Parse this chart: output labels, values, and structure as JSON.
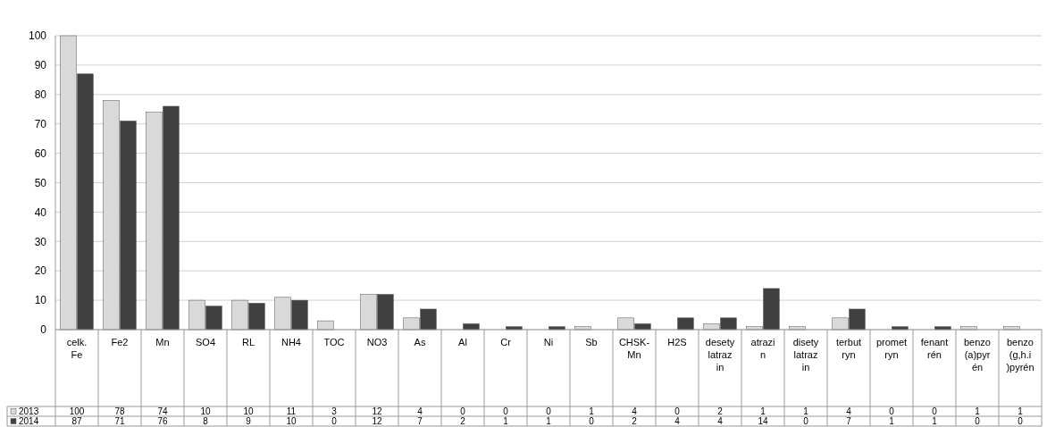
{
  "chart_data": {
    "type": "bar",
    "categories": [
      "celk. Fe",
      "Fe2",
      "Mn",
      "SO4",
      "RL",
      "NH4",
      "TOC",
      "NO3",
      "As",
      "Al",
      "Cr",
      "Ni",
      "Sb",
      "CHSK-Mn",
      "H2S",
      "desetylatrazin",
      "atrazin",
      "disetylatrazin",
      "terbutryn",
      "prometryn",
      "fenantrén",
      "benzo(a)pyrén",
      "benzo(g,h.i)pyrén"
    ],
    "series": [
      {
        "name": "2013",
        "color": "#d9d9d9",
        "values": [
          100,
          78,
          74,
          10,
          10,
          11,
          3,
          12,
          4,
          0,
          0,
          0,
          1,
          4,
          0,
          2,
          1,
          1,
          4,
          0,
          0,
          1,
          1
        ]
      },
      {
        "name": "2014",
        "color": "#404040",
        "values": [
          87,
          71,
          76,
          8,
          9,
          10,
          0,
          12,
          7,
          2,
          1,
          1,
          0,
          2,
          4,
          4,
          14,
          0,
          7,
          1,
          1,
          0,
          0
        ]
      }
    ],
    "ylim": [
      0,
      100
    ],
    "yticks": [
      0,
      10,
      20,
      30,
      40,
      50,
      60,
      70,
      80,
      90,
      100
    ],
    "grid": "y",
    "legend": "bottom",
    "data_labels": true
  }
}
